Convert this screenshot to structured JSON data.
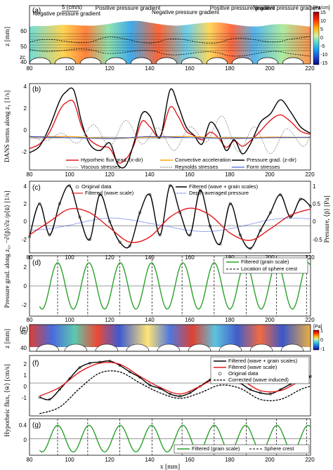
{
  "x_axis": {
    "label": "x [mm]",
    "range": [
      80,
      220
    ],
    "ticks": [
      "80",
      "100",
      "120",
      "140",
      "160",
      "180",
      "200",
      "220"
    ]
  },
  "y_labels": {
    "a": "z [mm]",
    "b": "DANS terms along z₁ [1/s]",
    "shared_cd": "Pressure grad. along z₁, −∂⟨p̄⟩/∂z /ρ⟨ū⟩ [1/s]",
    "c_right": "Pressure, ⟨p̄⟩ [Pa]",
    "e": "z [mm]",
    "shared_fg": "Hyporheic flux, ⟨w̄⟩ [cm/s]"
  },
  "colors": {
    "red": "#e31a1c",
    "black": "#000000",
    "green": "#2ca02c",
    "orange": "#ffa500",
    "blue": "#1f3fd6",
    "grey": "#808080"
  },
  "panels": [
    {
      "id": "a",
      "label": "(a)",
      "yticks": [
        "40",
        "50",
        "60"
      ],
      "annotations": [
        "Negative pressure gradient",
        "Positive pressure gradient",
        "Negative pressure gradient",
        "Positive pressure gradient",
        "Negative pressure gradient"
      ],
      "scale_label": "5 (cm/s)",
      "zc_label": "zc",
      "colorbar": {
        "title": "[Pa/cm]",
        "ticks": [
          "15",
          "10",
          "5",
          "0",
          "-5",
          "-10",
          "-15"
        ]
      }
    },
    {
      "id": "b",
      "label": "(b)",
      "yticks": [
        "-2",
        "0",
        "2",
        "4"
      ],
      "legend": [
        "Hyporheic flux grad. (x-dir)",
        "Convective acceleration",
        "Pressure grad. (z-dir)",
        "Viscous stresses",
        "Reynolds stresses",
        "Form stresses"
      ]
    },
    {
      "id": "c",
      "label": "(c)",
      "yticks": [
        "-2",
        "0",
        "2",
        "4"
      ],
      "yticks_right": [
        "-0.5",
        "0",
        "0.5",
        "1"
      ],
      "legend": [
        "Original data",
        "Filtered (wave + grain scales)",
        "Filtered (wave scale)",
        "Depth-averaged pressure"
      ]
    },
    {
      "id": "d",
      "label": "(d)",
      "yticks": [
        "-2",
        "0",
        "2"
      ],
      "legend": [
        "Filtered (grain scale)",
        "Location of sphere crest"
      ]
    },
    {
      "id": "e",
      "label": "(e)",
      "yticks": [
        "40",
        "45"
      ],
      "colorbar": {
        "title": "[Pa]",
        "ticks": [
          "1",
          "0",
          "-1"
        ]
      }
    },
    {
      "id": "f",
      "label": "(f)",
      "yticks": [
        "-1",
        "0",
        "1",
        "2"
      ],
      "legend": [
        "Filtered (wave + grain scales)",
        "Filtered (wave scale)",
        "Original data",
        "Corrected (wave induced)"
      ]
    },
    {
      "id": "g",
      "label": "(g)",
      "yticks": [
        "0",
        "0.4"
      ],
      "legend": [
        "Filtered (grain scale)",
        "Sphere crest"
      ]
    }
  ],
  "chart_data": [
    {
      "panel": "b",
      "type": "line",
      "xlim": [
        80,
        220
      ],
      "ylim": [
        -3,
        5
      ],
      "series": [
        {
          "name": "Hyporheic flux grad. (x-dir)",
          "color": "#e31a1c",
          "x": [
            80,
            85,
            90,
            95,
            98,
            102,
            106,
            110,
            115,
            120,
            124,
            128,
            132,
            136,
            140,
            145,
            150,
            154,
            158,
            162,
            166,
            170,
            174,
            178,
            182,
            186,
            190,
            195,
            200,
            205,
            210,
            215,
            220
          ],
          "y": [
            -1.0,
            -0.6,
            0.5,
            2.5,
            3.2,
            3.3,
            1.0,
            -0.2,
            -0.8,
            -1.0,
            -2.3,
            -2.0,
            -0.7,
            1.5,
            1.0,
            0.1,
            2.8,
            2.0,
            0.6,
            0.2,
            -0.2,
            0.5,
            0.0,
            -0.9,
            -0.3,
            -0.8,
            -0.3,
            0.6,
            1.6,
            2.1,
            1.5,
            0.6,
            0.3
          ]
        },
        {
          "name": "Pressure grad. (z-dir)",
          "color": "#000000",
          "x": [
            80,
            85,
            90,
            95,
            98,
            102,
            106,
            110,
            115,
            120,
            124,
            128,
            132,
            136,
            140,
            145,
            150,
            154,
            158,
            162,
            166,
            170,
            174,
            178,
            182,
            186,
            190,
            195,
            200,
            205,
            210,
            215,
            220
          ],
          "y": [
            -1.4,
            -0.8,
            1.0,
            3.4,
            4.2,
            4.4,
            1.4,
            -0.6,
            -1.2,
            -0.5,
            -2.5,
            -2.6,
            -0.5,
            2.2,
            2.0,
            0.0,
            4.4,
            3.0,
            1.0,
            0.2,
            -0.6,
            1.4,
            0.6,
            -1.2,
            -0.2,
            -1.5,
            -0.6,
            1.4,
            2.2,
            3.5,
            2.4,
            1.0,
            0.4
          ]
        },
        {
          "name": "Convective acceleration",
          "color": "#ffa500",
          "x": [
            80,
            100,
            120,
            140,
            160,
            180,
            200,
            220
          ],
          "y": [
            0.05,
            0.1,
            -0.1,
            0.05,
            0.1,
            -0.05,
            0.05,
            0.0
          ]
        },
        {
          "name": "Viscous stresses",
          "color": "#808080",
          "x": [
            80,
            100,
            120,
            140,
            160,
            180,
            200,
            220
          ],
          "y": [
            -0.1,
            -0.05,
            0.05,
            -0.1,
            0.0,
            0.05,
            -0.05,
            0.0
          ]
        },
        {
          "name": "Reynolds stresses",
          "color": "#808080",
          "x": [
            80,
            88,
            96,
            104,
            112,
            120,
            128,
            136,
            144,
            152,
            160,
            168,
            176,
            184,
            192,
            200,
            208,
            216,
            220
          ],
          "y": [
            0.2,
            -0.3,
            0.4,
            -0.5,
            1.2,
            -0.8,
            1.6,
            -0.6,
            0.9,
            -1.2,
            1.0,
            -0.4,
            2.0,
            -1.3,
            1.0,
            -1.5,
            0.8,
            -0.8,
            0.2
          ]
        },
        {
          "name": "Form stresses",
          "color": "#1f3fd6",
          "x": [
            80,
            100,
            120,
            140,
            160,
            180,
            200,
            220
          ],
          "y": [
            0.1,
            0.0,
            -0.1,
            0.1,
            0.0,
            -0.1,
            0.0,
            0.05
          ]
        }
      ]
    },
    {
      "panel": "c",
      "type": "line",
      "xlim": [
        80,
        220
      ],
      "ylim": [
        -3,
        5
      ],
      "series": [
        {
          "name": "Filtered (wave + grain scales)",
          "color": "#000000",
          "x": [
            80,
            85,
            90,
            95,
            100,
            105,
            110,
            115,
            120,
            125,
            130,
            135,
            140,
            145,
            150,
            155,
            160,
            165,
            170,
            175,
            180,
            185,
            190,
            195,
            200,
            205,
            210,
            215,
            220
          ],
          "y": [
            -1.2,
            2.5,
            -1.0,
            2.5,
            4.5,
            1.0,
            -1.5,
            3.5,
            0.5,
            -1.8,
            -2.2,
            1.5,
            3.5,
            -1.0,
            4.5,
            1.5,
            -1.0,
            4.0,
            0.0,
            -2.0,
            2.5,
            -1.0,
            -2.5,
            -0.5,
            1.5,
            3.5,
            1.0,
            3.0,
            2.2
          ]
        },
        {
          "name": "Filtered (wave scale)",
          "color": "#e31a1c",
          "x": [
            80,
            90,
            100,
            110,
            120,
            130,
            140,
            150,
            160,
            170,
            180,
            190,
            200,
            210,
            220
          ],
          "y": [
            -1.0,
            0.5,
            1.9,
            1.5,
            -0.2,
            -1.8,
            -1.2,
            1.0,
            2.0,
            1.2,
            -0.8,
            -1.6,
            -0.3,
            1.2,
            1.9
          ]
        },
        {
          "name": "Depth-averaged pressure",
          "color": "#1f3fd6",
          "x": [
            80,
            90,
            100,
            110,
            120,
            130,
            140,
            150,
            160,
            170,
            180,
            190,
            200,
            210,
            220
          ],
          "y": [
            -0.5,
            -0.3,
            0.1,
            0.6,
            0.9,
            0.7,
            0.3,
            -0.1,
            -0.5,
            -0.6,
            -0.3,
            0.2,
            0.7,
            0.9,
            0.8
          ]
        }
      ]
    },
    {
      "panel": "d",
      "type": "line",
      "xlim": [
        80,
        220
      ],
      "ylim": [
        -3,
        3
      ],
      "series": [
        {
          "name": "Filtered (grain scale)",
          "color": "#2ca02c",
          "period_mm": 15.6,
          "amplitude": 2.3
        }
      ],
      "crests_x": [
        94,
        109,
        125,
        141,
        156,
        172,
        188,
        203,
        218
      ]
    },
    {
      "panel": "f",
      "type": "line",
      "xlim": [
        80,
        220
      ],
      "ylim": [
        -3,
        2.5
      ],
      "series": [
        {
          "name": "Filtered (wave + grain scales)",
          "color": "#000000",
          "x": [
            85,
            90,
            95,
            100,
            105,
            110,
            115,
            120,
            125,
            130,
            135,
            140,
            145,
            150,
            155,
            160,
            165,
            170,
            175,
            180,
            185,
            190,
            195,
            200,
            205,
            210,
            215,
            220
          ],
          "y": [
            -1.3,
            -1.5,
            -0.6,
            0.4,
            1.4,
            1.8,
            1.9,
            2.0,
            1.6,
            1.0,
            0.5,
            -0.2,
            -0.5,
            -1.0,
            -1.2,
            -0.9,
            -0.3,
            0.3,
            0.7,
            0.6,
            0.0,
            -0.6,
            -0.9,
            -1.0,
            -0.6,
            -0.1,
            0.4,
            0.6
          ]
        },
        {
          "name": "Filtered (wave scale)",
          "color": "#e31a1c",
          "x": [
            85,
            95,
            105,
            115,
            125,
            135,
            145,
            155,
            165,
            175,
            185,
            195,
            205,
            215,
            220
          ],
          "y": [
            -1.2,
            -0.4,
            1.0,
            1.8,
            1.7,
            0.6,
            -0.4,
            -1.0,
            -0.3,
            0.6,
            0.3,
            -0.7,
            -0.7,
            0.2,
            0.5
          ]
        },
        {
          "name": "Corrected (wave induced)",
          "color": "#000000",
          "x": [
            85,
            95,
            105,
            115,
            125,
            135,
            145,
            155,
            165,
            175,
            185,
            195,
            205,
            215,
            220
          ],
          "y": [
            -2.8,
            -2.2,
            -0.5,
            0.9,
            1.0,
            0.0,
            -0.9,
            -1.4,
            -0.9,
            -0.2,
            -0.5,
            -1.5,
            -1.5,
            -0.6,
            -0.3
          ]
        }
      ]
    },
    {
      "panel": "g",
      "type": "line",
      "xlim": [
        80,
        220
      ],
      "ylim": [
        -0.5,
        0.6
      ],
      "series": [
        {
          "name": "Filtered (grain scale)",
          "color": "#2ca02c",
          "period_mm": 15.6,
          "amplitude": 0.4
        }
      ],
      "crests_x": [
        94,
        109,
        125,
        141,
        156,
        172,
        188,
        203,
        218
      ]
    }
  ]
}
